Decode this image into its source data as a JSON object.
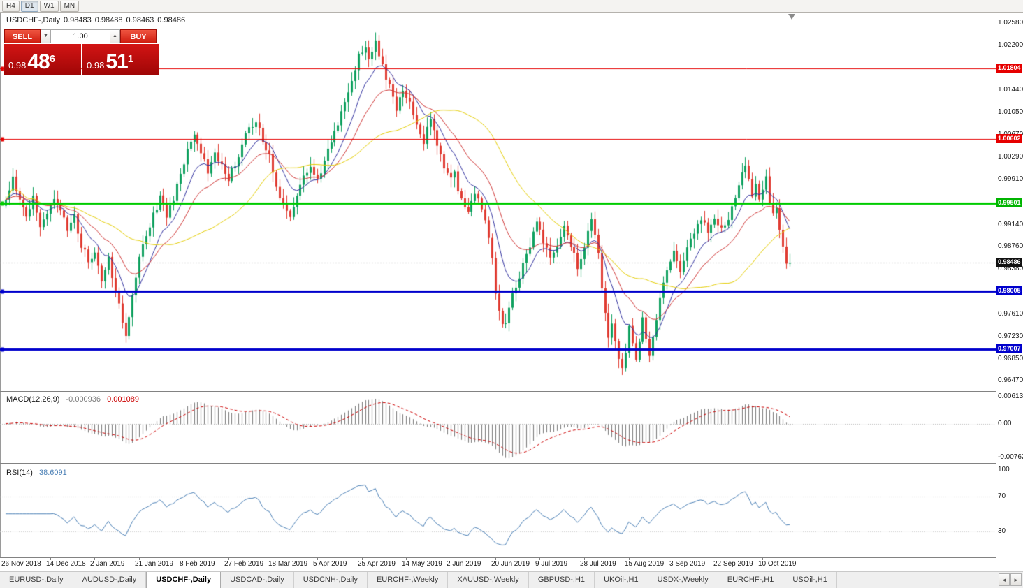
{
  "toolbar": {
    "timeframes": [
      {
        "label": "H4",
        "active": false
      },
      {
        "label": "D1",
        "active": true
      },
      {
        "label": "W1",
        "active": false
      },
      {
        "label": "MN",
        "active": false
      }
    ]
  },
  "chart": {
    "title": "USDCHF-,Daily",
    "open": "0.98483",
    "high": "0.98488",
    "low": "0.98463",
    "close": "0.98486"
  },
  "trade_panel": {
    "sell_label": "SELL",
    "buy_label": "BUY",
    "volume": "1.00",
    "spin_down": "▼",
    "spin_up": "▲",
    "bid": {
      "prefix": "0.98",
      "big": "48",
      "sup": "6"
    },
    "ask": {
      "prefix": "0.98",
      "big": "51",
      "sup": "1"
    }
  },
  "price_axis": {
    "labels": [
      [
        "1.02580",
        1.0258
      ],
      [
        "1.02200",
        1.022
      ],
      [
        "1.01440",
        1.0144
      ],
      [
        "1.01050",
        1.0105
      ],
      [
        "1.00670",
        1.0067
      ],
      [
        "1.00290",
        1.0029
      ],
      [
        "0.99910",
        0.9991
      ],
      [
        "0.99140",
        0.9914
      ],
      [
        "0.98760",
        0.9876
      ],
      [
        "0.98380",
        0.9838
      ],
      [
        "0.97610",
        0.9761
      ],
      [
        "0.97230",
        0.9723
      ],
      [
        "0.96850",
        0.9685
      ],
      [
        "0.96470",
        0.9647
      ]
    ],
    "badges": [
      {
        "label": "1.01804",
        "price": 1.01804,
        "color": "#e60000"
      },
      {
        "label": "1.00602",
        "price": 1.00602,
        "color": "#e60000"
      },
      {
        "label": "0.99501",
        "price": 0.99501,
        "color": "#00b400"
      },
      {
        "label": "0.98486",
        "price": 0.98486,
        "color": "#111111"
      },
      {
        "label": "0.98005",
        "price": 0.98005,
        "color": "#0000cc"
      },
      {
        "label": "0.97007",
        "price": 0.97007,
        "color": "#0000cc"
      }
    ]
  },
  "macd": {
    "name": "MACD(12,26,9)",
    "value_main": "-0.000936",
    "value_signal": "0.001089",
    "axis": [
      [
        "0.00613",
        0.00613
      ],
      [
        "0.00",
        0
      ],
      [
        "-0.00762",
        -0.00762
      ]
    ]
  },
  "rsi": {
    "name": "RSI(14)",
    "value": "38.6091",
    "axis": [
      [
        "100",
        100
      ],
      [
        "70",
        70
      ],
      [
        "30",
        30
      ]
    ]
  },
  "tabs": {
    "items": [
      {
        "label": "EURUSD-,Daily",
        "active": false
      },
      {
        "label": "AUDUSD-,Daily",
        "active": false
      },
      {
        "label": "USDCHF-,Daily",
        "active": true
      },
      {
        "label": "USDCAD-,Daily",
        "active": false
      },
      {
        "label": "USDCNH-,Daily",
        "active": false
      },
      {
        "label": "EURCHF-,Weekly",
        "active": false
      },
      {
        "label": "XAUUSD-,Weekly",
        "active": false
      },
      {
        "label": "GBPUSD-,H1",
        "active": false
      },
      {
        "label": "UKOil-,H1",
        "active": false
      },
      {
        "label": "USDX-,Weekly",
        "active": false
      },
      {
        "label": "EURCHF-,H1",
        "active": false
      },
      {
        "label": "USOil-,H1",
        "active": false
      }
    ],
    "prev": "◄",
    "next": "►"
  },
  "chart_data": {
    "type": "candlestick",
    "symbol": "USDCHF-",
    "timeframe": "Daily",
    "bar_count": 230,
    "price_scale": {
      "max": 1.0276,
      "min": 0.9632
    },
    "macd_scale": {
      "max": 0.00725,
      "min": -0.00895
    },
    "rsi_scale": {
      "max": 106,
      "min": 0
    },
    "current_price": 0.98486,
    "levels": [
      {
        "price": 1.01804,
        "color": "#e60000",
        "width": 1
      },
      {
        "price": 1.00602,
        "color": "#e60000",
        "width": 1
      },
      {
        "price": 0.99501,
        "color": "#00cc00",
        "width": 3
      },
      {
        "price": 0.98005,
        "color": "#0000cc",
        "width": 3
      },
      {
        "price": 0.97007,
        "color": "#0000cc",
        "width": 3
      }
    ],
    "colors": {
      "up": "#0fa15f",
      "down": "#e03c32",
      "ma_fast": "#30309e",
      "ma_mid": "#cf3535",
      "ma_slow": "#e3cc00",
      "macd_hist": "#7a7a7a",
      "macd_signal": "#cc0000",
      "rsi": "#4a7fb5"
    },
    "moving_averages": [
      {
        "type": "ema",
        "period": 10,
        "color_key": "ma_fast"
      },
      {
        "type": "ema",
        "period": 21,
        "color_key": "ma_mid"
      },
      {
        "type": "sma",
        "period": 40,
        "color_key": "ma_slow"
      }
    ],
    "date_ticks": [
      {
        "label": "26 Nov 2018",
        "bar": 0
      },
      {
        "label": "14 Dec 2018",
        "bar": 13
      },
      {
        "label": "2 Jan 2019",
        "bar": 26
      },
      {
        "label": "21 Jan 2019",
        "bar": 39
      },
      {
        "label": "8 Feb 2019",
        "bar": 52
      },
      {
        "label": "27 Feb 2019",
        "bar": 65
      },
      {
        "label": "18 Mar 2019",
        "bar": 78
      },
      {
        "label": "5 Apr 2019",
        "bar": 91
      },
      {
        "label": "25 Apr 2019",
        "bar": 104
      },
      {
        "label": "14 May 2019",
        "bar": 117
      },
      {
        "label": "2 Jun 2019",
        "bar": 130
      },
      {
        "label": "20 Jun 2019",
        "bar": 143
      },
      {
        "label": "9 Jul 2019",
        "bar": 156
      },
      {
        "label": "28 Jul 2019",
        "bar": 169
      },
      {
        "label": "15 Aug 2019",
        "bar": 182
      },
      {
        "label": "3 Sep 2019",
        "bar": 195
      },
      {
        "label": "22 Sep 2019",
        "bar": 208
      },
      {
        "label": "10 Oct 2019",
        "bar": 221
      }
    ],
    "price_anchors": [
      [
        0,
        0.9958
      ],
      [
        2,
        0.9992
      ],
      [
        4,
        0.995
      ],
      [
        6,
        0.9925
      ],
      [
        8,
        0.9962
      ],
      [
        10,
        0.991
      ],
      [
        12,
        0.994
      ],
      [
        14,
        0.9965
      ],
      [
        16,
        0.9935
      ],
      [
        18,
        0.9905
      ],
      [
        20,
        0.9925
      ],
      [
        22,
        0.988
      ],
      [
        24,
        0.9852
      ],
      [
        26,
        0.9872
      ],
      [
        28,
        0.982
      ],
      [
        30,
        0.9858
      ],
      [
        32,
        0.98
      ],
      [
        34,
        0.9748
      ],
      [
        35,
        0.9722
      ],
      [
        37,
        0.98
      ],
      [
        39,
        0.986
      ],
      [
        41,
        0.9895
      ],
      [
        43,
        0.993
      ],
      [
        45,
        0.9962
      ],
      [
        47,
        0.9925
      ],
      [
        49,
        0.9958
      ],
      [
        51,
        0.9998
      ],
      [
        53,
        1.0042
      ],
      [
        55,
        1.0068
      ],
      [
        57,
        1.0042
      ],
      [
        59,
        1.0008
      ],
      [
        61,
        1.004
      ],
      [
        63,
        1.0012
      ],
      [
        65,
        0.9992
      ],
      [
        67,
        1.0018
      ],
      [
        69,
        1.0048
      ],
      [
        71,
        1.0078
      ],
      [
        73,
        1.0088
      ],
      [
        75,
        1.0058
      ],
      [
        77,
        1.003
      ],
      [
        79,
        0.9985
      ],
      [
        81,
        0.9945
      ],
      [
        83,
        0.9925
      ],
      [
        85,
        0.9968
      ],
      [
        87,
        0.9995
      ],
      [
        89,
        1.0012
      ],
      [
        91,
        0.999
      ],
      [
        93,
        1.002
      ],
      [
        95,
        1.0058
      ],
      [
        97,
        1.009
      ],
      [
        99,
        1.0128
      ],
      [
        101,
        1.0165
      ],
      [
        103,
        1.02
      ],
      [
        105,
        1.0218
      ],
      [
        106,
        1.0192
      ],
      [
        108,
        1.0222
      ],
      [
        110,
        1.0185
      ],
      [
        112,
        1.0148
      ],
      [
        114,
        1.011
      ],
      [
        116,
        1.014
      ],
      [
        118,
        1.0125
      ],
      [
        120,
        1.0085
      ],
      [
        122,
        1.0058
      ],
      [
        124,
        1.0092
      ],
      [
        126,
        1.0052
      ],
      [
        128,
        1.0012
      ],
      [
        130,
        0.9988
      ],
      [
        131,
        1.0002
      ],
      [
        133,
        0.9952
      ],
      [
        135,
        0.993
      ],
      [
        137,
        0.9968
      ],
      [
        139,
        0.994
      ],
      [
        141,
        0.989
      ],
      [
        142,
        0.985
      ],
      [
        143,
        0.98
      ],
      [
        144,
        0.9762
      ],
      [
        145,
        0.9738
      ],
      [
        146,
        0.9752
      ],
      [
        147,
        0.9772
      ],
      [
        148,
        0.9798
      ],
      [
        150,
        0.9828
      ],
      [
        152,
        0.9862
      ],
      [
        154,
        0.9895
      ],
      [
        155,
        0.9915
      ],
      [
        157,
        0.9882
      ],
      [
        159,
        0.9852
      ],
      [
        161,
        0.9882
      ],
      [
        163,
        0.9912
      ],
      [
        165,
        0.9878
      ],
      [
        167,
        0.9842
      ],
      [
        169,
        0.9868
      ],
      [
        170,
        0.9898
      ],
      [
        171,
        0.993
      ],
      [
        172,
        0.9892
      ],
      [
        173,
        0.9858
      ],
      [
        174,
        0.9812
      ],
      [
        175,
        0.9762
      ],
      [
        176,
        0.9728
      ],
      [
        177,
        0.9748
      ],
      [
        178,
        0.9715
      ],
      [
        179,
        0.9688
      ],
      [
        180,
        0.9662
      ],
      [
        181,
        0.9702
      ],
      [
        182,
        0.9738
      ],
      [
        183,
        0.9715
      ],
      [
        184,
        0.969
      ],
      [
        185,
        0.9712
      ],
      [
        186,
        0.9748
      ],
      [
        187,
        0.972
      ],
      [
        188,
        0.9695
      ],
      [
        189,
        0.9722
      ],
      [
        190,
        0.9758
      ],
      [
        191,
        0.9788
      ],
      [
        192,
        0.9808
      ],
      [
        193,
        0.9832
      ],
      [
        194,
        0.9855
      ],
      [
        195,
        0.9868
      ],
      [
        197,
        0.984
      ],
      [
        199,
        0.9875
      ],
      [
        201,
        0.9905
      ],
      [
        203,
        0.9928
      ],
      [
        205,
        0.9895
      ],
      [
        207,
        0.9925
      ],
      [
        209,
        0.9902
      ],
      [
        211,
        0.9928
      ],
      [
        213,
        0.9958
      ],
      [
        215,
        0.9998
      ],
      [
        216,
        1.0022
      ],
      [
        217,
        0.9992
      ],
      [
        218,
        0.9965
      ],
      [
        219,
        0.9985
      ],
      [
        220,
        0.9958
      ],
      [
        221,
        0.9975
      ],
      [
        222,
        0.9992
      ],
      [
        223,
        0.9958
      ],
      [
        224,
        0.9928
      ],
      [
        225,
        0.9945
      ],
      [
        226,
        0.9912
      ],
      [
        227,
        0.9878
      ],
      [
        228,
        0.9852
      ],
      [
        229,
        0.98486
      ]
    ]
  }
}
